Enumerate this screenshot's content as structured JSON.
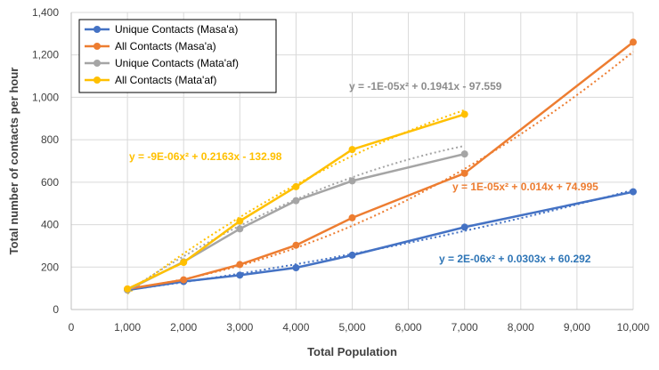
{
  "chart_data": {
    "type": "line",
    "xlabel": "Total Population",
    "ylabel": "Total number of contacts per hour",
    "xlim": [
      0,
      10000
    ],
    "ylim": [
      0,
      1400
    ],
    "xticks": [
      0,
      1000,
      2000,
      3000,
      4000,
      5000,
      6000,
      7000,
      8000,
      9000,
      10000
    ],
    "yticks": [
      0,
      200,
      400,
      600,
      800,
      1000,
      1200,
      1400
    ],
    "xtick_labels": [
      "0",
      "1,000",
      "2,000",
      "3,000",
      "4,000",
      "5,000",
      "6,000",
      "7,000",
      "8,000",
      "9,000",
      "10,000"
    ],
    "ytick_labels": [
      "0",
      "200",
      "400",
      "600",
      "800",
      "1,000",
      "1,200",
      "1,400"
    ],
    "grid": "both",
    "legend_position": "top-left",
    "series": [
      {
        "name": "Unique Contacts (Masa'a)",
        "color": "#4472C4",
        "x": [
          1000,
          2000,
          3000,
          4000,
          5000,
          7000,
          10000
        ],
        "y": [
          92,
          132,
          162,
          197,
          256,
          388,
          555
        ],
        "trend": {
          "a": 2e-06,
          "b": 0.0303,
          "c": 60.292,
          "equation": "y = 2E-06x² + 0.0303x + 60.292",
          "color": "#2E75B6"
        }
      },
      {
        "name": "All Contacts (Masa'a)",
        "color": "#ED7D31",
        "x": [
          1000,
          2000,
          3000,
          4000,
          5000,
          7000,
          10000
        ],
        "y": [
          97,
          140,
          212,
          303,
          432,
          642,
          1260
        ],
        "trend": {
          "a": 1e-05,
          "b": 0.014,
          "c": 74.995,
          "equation": "y = 1E-05x² + 0.014x + 74.995",
          "color": "#ED7D31"
        }
      },
      {
        "name": "Unique Contacts (Mata'af)",
        "color": "#A5A5A5",
        "x": [
          1000,
          2000,
          3000,
          4000,
          5000,
          7000
        ],
        "y": [
          92,
          225,
          380,
          513,
          606,
          733
        ],
        "trend": {
          "a": -1e-05,
          "b": 0.1941,
          "c": -97.559,
          "equation": "y = -1E-05x² + 0.1941x - 97.559",
          "color": "#8C8C8C"
        }
      },
      {
        "name": "All Contacts (Mata'af)",
        "color": "#FFC000",
        "x": [
          1000,
          2000,
          3000,
          4000,
          5000,
          7000
        ],
        "y": [
          97,
          222,
          417,
          579,
          754,
          920
        ],
        "trend": {
          "a": -9e-06,
          "b": 0.2163,
          "c": -132.98,
          "equation": "y = -9E-06x² + 0.2163x - 132.98",
          "color": "#FFC000"
        }
      }
    ]
  }
}
